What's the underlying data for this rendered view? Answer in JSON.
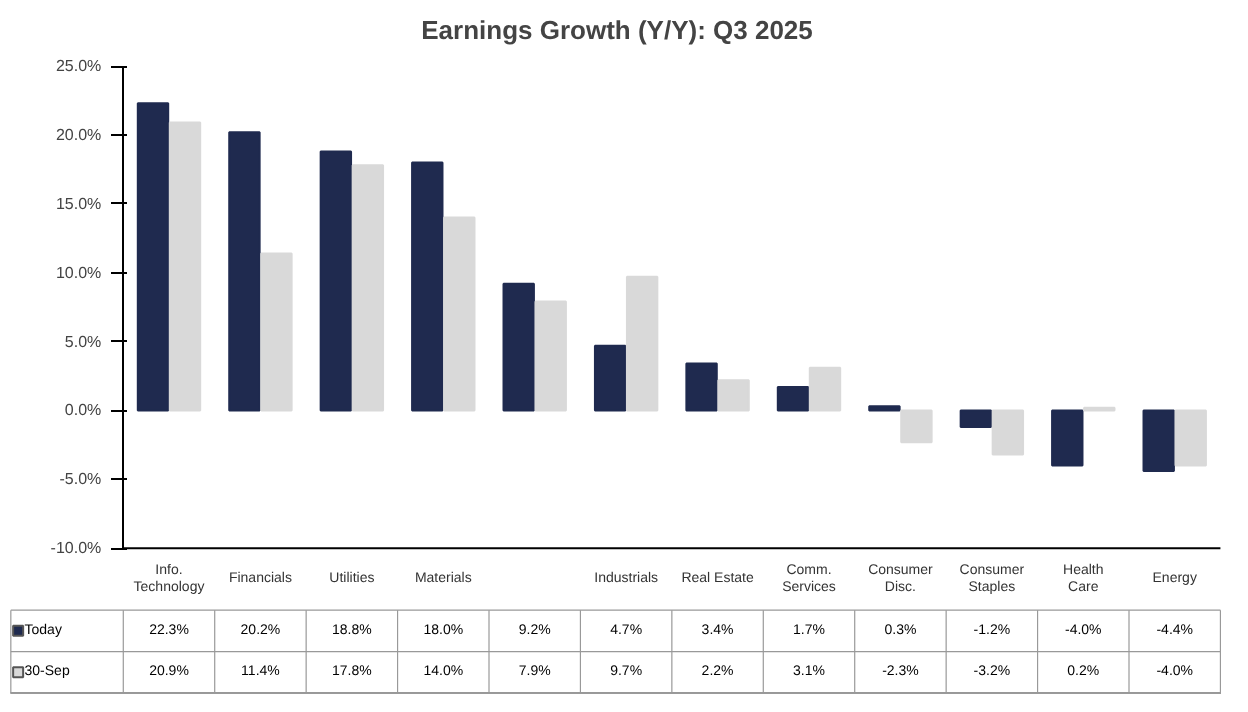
{
  "chart_data": {
    "type": "bar",
    "title": "Earnings Growth (Y/Y): Q3 2025",
    "categories": [
      "Info.\nTechnology",
      "Financials",
      "Utilities",
      "Materials",
      null,
      "Industrials",
      "Real Estate",
      "Comm.\nServices",
      "Consumer\nDisc.",
      "Consumer\nStaples",
      "Health\nCare",
      "Energy"
    ],
    "series": [
      {
        "name": "Today",
        "color": "#1f2a4f",
        "values": [
          22.3,
          20.2,
          18.8,
          18.0,
          9.2,
          4.7,
          3.4,
          1.7,
          0.3,
          -1.2,
          -4.0,
          -4.4
        ],
        "value_labels": [
          "22.3%",
          "20.2%",
          "18.8%",
          "18.0%",
          "9.2%",
          "4.7%",
          "3.4%",
          "1.7%",
          "0.3%",
          "-1.2%",
          "-4.0%",
          "-4.4%"
        ]
      },
      {
        "name": "30-Sep",
        "color": "#d9d9d9",
        "values": [
          20.9,
          11.4,
          17.8,
          14.0,
          7.9,
          9.7,
          2.2,
          3.1,
          -2.3,
          -3.2,
          0.2,
          -4.0
        ],
        "value_labels": [
          "20.9%",
          "11.4%",
          "17.8%",
          "14.0%",
          "7.9%",
          "9.7%",
          "2.2%",
          "3.1%",
          "-2.3%",
          "-3.2%",
          "0.2%",
          "-4.0%"
        ]
      }
    ],
    "ylim": [
      -10,
      25
    ],
    "yticks": [
      {
        "value": -10,
        "label": "-10.0%"
      },
      {
        "value": -5,
        "label": "-5.0%"
      },
      {
        "value": 0,
        "label": "0.0%"
      },
      {
        "value": 5,
        "label": "5.0%"
      },
      {
        "value": 10,
        "label": "10.0%"
      },
      {
        "value": 15,
        "label": "15.0%"
      },
      {
        "value": 20,
        "label": "20.0%"
      },
      {
        "value": 25,
        "label": "25.0%"
      }
    ],
    "legend": "bottom",
    "grid": false
  }
}
